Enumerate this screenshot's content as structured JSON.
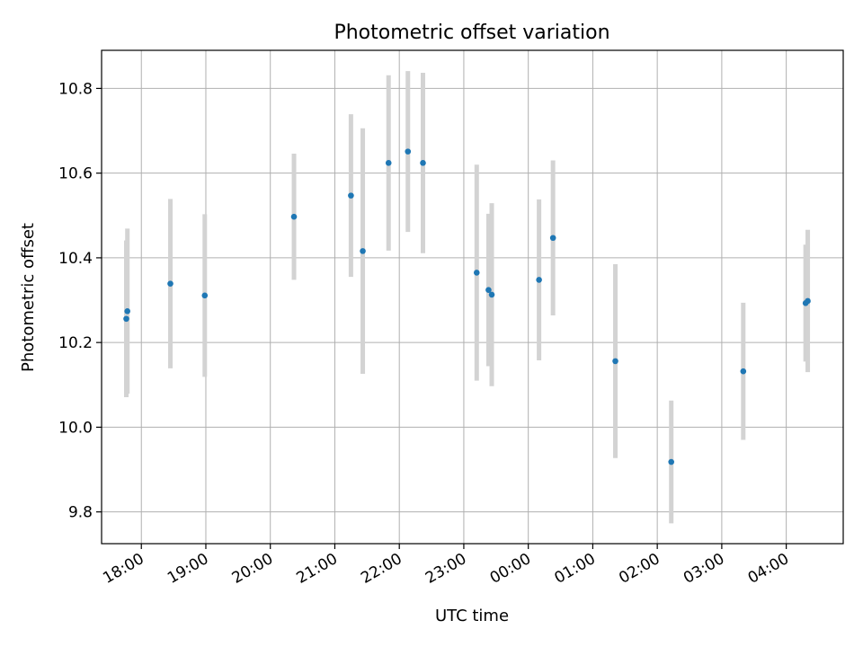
{
  "chart_data": {
    "type": "scatter",
    "title": "Photometric offset variation",
    "xlabel": "UTC time",
    "ylabel": "Photometric offset",
    "x_unit": "UTC time (HH:MM, night spanning midnight)",
    "xlim": [
      "17:23",
      "04:53"
    ],
    "ylim": [
      9.725,
      10.89
    ],
    "x_ticks": [
      "18:00",
      "19:00",
      "20:00",
      "21:00",
      "22:00",
      "23:00",
      "00:00",
      "01:00",
      "02:00",
      "03:00",
      "04:00"
    ],
    "y_ticks": [
      9.8,
      10.0,
      10.2,
      10.4,
      10.6,
      10.8
    ],
    "y_tick_labels": [
      "9.8",
      "10.0",
      "10.2",
      "10.4",
      "10.6",
      "10.8"
    ],
    "grid": true,
    "legend": "none",
    "x_tick_rotation_deg": 30,
    "colors": {
      "points": "#1f77b4",
      "errorbars": "#d3d3d3",
      "grid": "#b0b0b0"
    },
    "series": [
      {
        "points": [
          {
            "time": "17:46",
            "y": 10.256,
            "err": 0.185
          },
          {
            "time": "17:47",
            "y": 10.274,
            "err": 0.195
          },
          {
            "time": "18:27",
            "y": 10.339,
            "err": 0.2
          },
          {
            "time": "18:59",
            "y": 10.311,
            "err": 0.192
          },
          {
            "time": "20:22",
            "y": 10.497,
            "err": 0.149
          },
          {
            "time": "21:15",
            "y": 10.547,
            "err": 0.192
          },
          {
            "time": "21:26",
            "y": 10.416,
            "err": 0.29
          },
          {
            "time": "21:50",
            "y": 10.624,
            "err": 0.207
          },
          {
            "time": "22:08",
            "y": 10.651,
            "err": 0.19
          },
          {
            "time": "22:22",
            "y": 10.624,
            "err": 0.213
          },
          {
            "time": "23:12",
            "y": 10.365,
            "err": 0.255
          },
          {
            "time": "23:23",
            "y": 10.324,
            "err": 0.18
          },
          {
            "time": "23:26",
            "y": 10.313,
            "err": 0.216
          },
          {
            "time": "00:10",
            "y": 10.348,
            "err": 0.19
          },
          {
            "time": "00:23",
            "y": 10.447,
            "err": 0.183
          },
          {
            "time": "01:21",
            "y": 10.156,
            "err": 0.229
          },
          {
            "time": "02:13",
            "y": 9.918,
            "err": 0.145
          },
          {
            "time": "03:20",
            "y": 10.132,
            "err": 0.162
          },
          {
            "time": "04:18",
            "y": 10.293,
            "err": 0.138
          },
          {
            "time": "04:20",
            "y": 10.298,
            "err": 0.168
          }
        ]
      }
    ]
  }
}
